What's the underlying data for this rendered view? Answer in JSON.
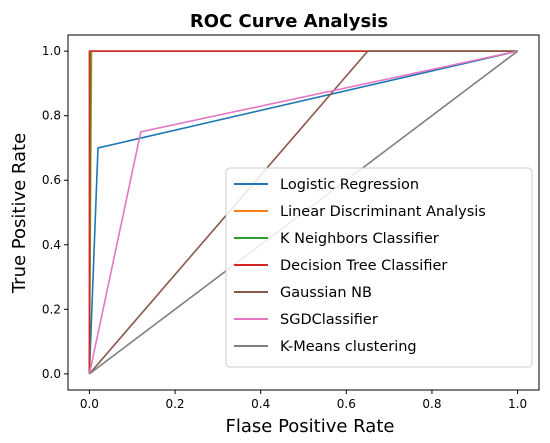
{
  "chart_data": {
    "type": "line",
    "title": "ROC Curve Analysis",
    "xlabel": "Flase Positive Rate",
    "ylabel": "True Positive Rate",
    "xlim": [
      -0.05,
      1.05
    ],
    "ylim": [
      -0.05,
      1.05
    ],
    "xticks": [
      "0.0",
      "0.2",
      "0.4",
      "0.6",
      "0.8",
      "1.0"
    ],
    "yticks": [
      "0.0",
      "0.2",
      "0.4",
      "0.6",
      "0.8",
      "1.0"
    ],
    "grid": false,
    "legend_position": "lower-right",
    "series": [
      {
        "name": "Logistic Regression",
        "color": "#1f77b4",
        "x": [
          0,
          0.02,
          1
        ],
        "y": [
          0,
          0.7,
          1
        ]
      },
      {
        "name": "Linear Discriminant Analysis",
        "color": "#ff7f0e",
        "x": [
          0,
          0.005,
          1
        ],
        "y": [
          0,
          1,
          1
        ]
      },
      {
        "name": "K Neighbors Classifier",
        "color": "#2ca02c",
        "x": [
          0,
          0.003,
          1
        ],
        "y": [
          0,
          1,
          1
        ]
      },
      {
        "name": "Decision Tree Classifier",
        "color": "#d62728",
        "x": [
          0,
          0,
          1
        ],
        "y": [
          0,
          1,
          1
        ]
      },
      {
        "name": "Gaussian NB",
        "color": "#8c564b",
        "x": [
          0,
          0.65,
          1
        ],
        "y": [
          0,
          1,
          1
        ]
      },
      {
        "name": "SGDClassifier",
        "color": "#e377c2",
        "x": [
          0,
          0.12,
          1
        ],
        "y": [
          0,
          0.75,
          1
        ]
      },
      {
        "name": "K-Means clustering",
        "color": "#7f7f7f",
        "x": [
          0,
          1
        ],
        "y": [
          0,
          1
        ]
      }
    ]
  }
}
